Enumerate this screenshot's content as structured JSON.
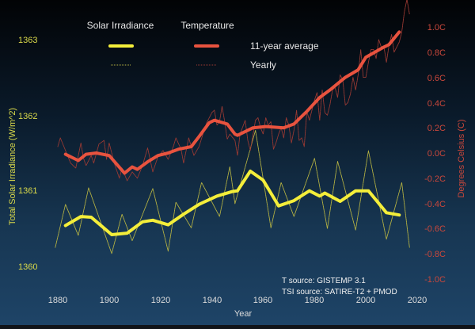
{
  "chart_data": {
    "type": "line",
    "xlabel": "Year",
    "ylabel_left": "Total Solar Irradiance (W/m^2)",
    "ylabel_right": "Degrees Celsius (C)",
    "xlim": [
      1880,
      2020
    ],
    "x_ticks": [
      "1880",
      "1900",
      "1920",
      "1940",
      "1960",
      "1980",
      "2000",
      "2020"
    ],
    "left_axis": {
      "ylim": [
        1360,
        1363
      ],
      "ticks": [
        "1360",
        "1361",
        "1362",
        "1363"
      ],
      "color": "#d9d94a"
    },
    "right_axis": {
      "ylim": [
        -1.0,
        1.0
      ],
      "ticks": [
        "-1.0C",
        "-0.8C",
        "-0.6C",
        "-0.4C",
        "-0.2C",
        "0.0C",
        "0.2C",
        "0.4C",
        "0.6C",
        "0.8C",
        "1.0C"
      ],
      "color": "#c9473b"
    },
    "grid": false,
    "legend": {
      "placement": "top",
      "group_headers": [
        "Solar Irradiance",
        "Temperature"
      ],
      "row_labels": [
        "11-year average",
        "Yearly"
      ]
    },
    "annotations": [
      "T source: GISTEMP 3.1",
      "TSI source: SATIRE-T2 + PMOD"
    ],
    "series": [
      {
        "name": "Solar Irradiance 11-year average",
        "axis": "left",
        "color": "#f4ee3a",
        "x": [
          1883,
          1889,
          1893,
          1901,
          1907,
          1913,
          1917,
          1923,
          1929,
          1935,
          1942,
          1948,
          1950,
          1955,
          1960,
          1966,
          1972,
          1978,
          1982,
          1984,
          1990,
          1996,
          2001,
          2008,
          2013
        ],
        "y": [
          1360.54,
          1360.66,
          1360.65,
          1360.42,
          1360.44,
          1360.59,
          1360.61,
          1360.55,
          1360.69,
          1360.82,
          1360.93,
          1360.99,
          1361.0,
          1361.26,
          1361.14,
          1360.8,
          1360.87,
          1361.0,
          1360.93,
          1360.97,
          1360.86,
          1361.0,
          1361.0,
          1360.71,
          1360.68
        ]
      },
      {
        "name": "Solar Irradiance yearly",
        "axis": "left",
        "color": "#b7b443",
        "x": [
          1879,
          1883,
          1888,
          1892,
          1901,
          1905,
          1909,
          1917,
          1923,
          1926,
          1932,
          1936,
          1943,
          1947,
          1949,
          1957,
          1963,
          1967,
          1972,
          1980,
          1985,
          1989,
          1996,
          2001,
          2008,
          2014,
          2017
        ],
        "y": [
          1360.25,
          1360.82,
          1360.41,
          1361.04,
          1360.17,
          1360.69,
          1360.34,
          1361.03,
          1360.2,
          1360.85,
          1360.51,
          1361.11,
          1360.66,
          1361.32,
          1360.83,
          1361.8,
          1360.51,
          1361.11,
          1360.66,
          1361.43,
          1360.5,
          1361.39,
          1360.48,
          1361.53,
          1360.36,
          1361.11,
          1360.25
        ]
      },
      {
        "name": "Temperature 11-year average",
        "axis": "right",
        "color": "#e8533f",
        "x": [
          1883,
          1888,
          1891,
          1895,
          1900,
          1903,
          1906,
          1909,
          1911,
          1915,
          1919,
          1923,
          1927,
          1932,
          1935,
          1939,
          1941,
          1946,
          1949,
          1950,
          1956,
          1961,
          1968,
          1972,
          1977,
          1982,
          1986,
          1992,
          1997,
          2000,
          2007,
          2009,
          2013
        ],
        "y": [
          -0.01,
          -0.06,
          -0.01,
          0.0,
          -0.02,
          -0.09,
          -0.16,
          -0.11,
          -0.13,
          -0.07,
          -0.02,
          0.0,
          0.03,
          0.05,
          0.13,
          0.24,
          0.26,
          0.23,
          0.15,
          0.14,
          0.2,
          0.21,
          0.2,
          0.23,
          0.33,
          0.44,
          0.5,
          0.6,
          0.66,
          0.76,
          0.84,
          0.86,
          0.96
        ]
      },
      {
        "name": "Temperature yearly",
        "axis": "right",
        "color": "#9c3a33",
        "x": [
          1880,
          1881,
          1883,
          1885,
          1887,
          1889,
          1890,
          1891,
          1893,
          1894,
          1896,
          1898,
          1899,
          1900,
          1902,
          1904,
          1905,
          1907,
          1909,
          1911,
          1913,
          1915,
          1917,
          1919,
          1921,
          1923,
          1925,
          1926,
          1928,
          1929,
          1931,
          1933,
          1935,
          1937,
          1938,
          1940,
          1941,
          1942,
          1943,
          1944,
          1945,
          1946,
          1947,
          1949,
          1950,
          1951,
          1953,
          1954,
          1955,
          1957,
          1958,
          1959,
          1960,
          1961,
          1962,
          1963,
          1964,
          1965,
          1966,
          1967,
          1968,
          1969,
          1970,
          1971,
          1972,
          1973,
          1974,
          1975,
          1976,
          1977,
          1978,
          1979,
          1980,
          1981,
          1982,
          1983,
          1984,
          1985,
          1986,
          1987,
          1988,
          1989,
          1990,
          1991,
          1992,
          1993,
          1994,
          1995,
          1996,
          1997,
          1998,
          1999,
          2000,
          2001,
          2002,
          2003,
          2004,
          2005,
          2006,
          2007,
          2008,
          2009,
          2010,
          2011,
          2012,
          2013,
          2014,
          2015,
          2016,
          2017
        ],
        "y": [
          0.05,
          0.12,
          0.02,
          -0.08,
          -0.12,
          0.08,
          -0.04,
          -0.1,
          -0.02,
          -0.08,
          0.07,
          0.1,
          -0.05,
          0.08,
          -0.08,
          -0.2,
          -0.12,
          -0.22,
          -0.15,
          -0.2,
          -0.1,
          0.04,
          -0.15,
          -0.03,
          0.02,
          -0.05,
          0.05,
          0.12,
          0.03,
          -0.08,
          0.12,
          -0.02,
          0.05,
          0.18,
          0.24,
          0.32,
          0.34,
          0.22,
          0.25,
          0.37,
          0.25,
          0.11,
          0.15,
          0.1,
          -0.02,
          0.15,
          0.26,
          0.1,
          0.02,
          0.26,
          0.28,
          0.2,
          0.15,
          0.28,
          0.22,
          0.25,
          0.03,
          0.08,
          0.15,
          0.2,
          0.12,
          0.28,
          0.22,
          0.08,
          0.18,
          0.34,
          0.1,
          0.12,
          0.05,
          0.33,
          0.26,
          0.34,
          0.42,
          0.48,
          0.26,
          0.5,
          0.32,
          0.3,
          0.38,
          0.5,
          0.52,
          0.44,
          0.62,
          0.58,
          0.38,
          0.4,
          0.47,
          0.6,
          0.5,
          0.62,
          0.82,
          0.6,
          0.6,
          0.72,
          0.82,
          0.82,
          0.75,
          0.9,
          0.84,
          0.85,
          0.72,
          0.85,
          0.94,
          0.8,
          0.84,
          0.88,
          0.96,
          1.12,
          1.22,
          1.1
        ]
      }
    ]
  }
}
